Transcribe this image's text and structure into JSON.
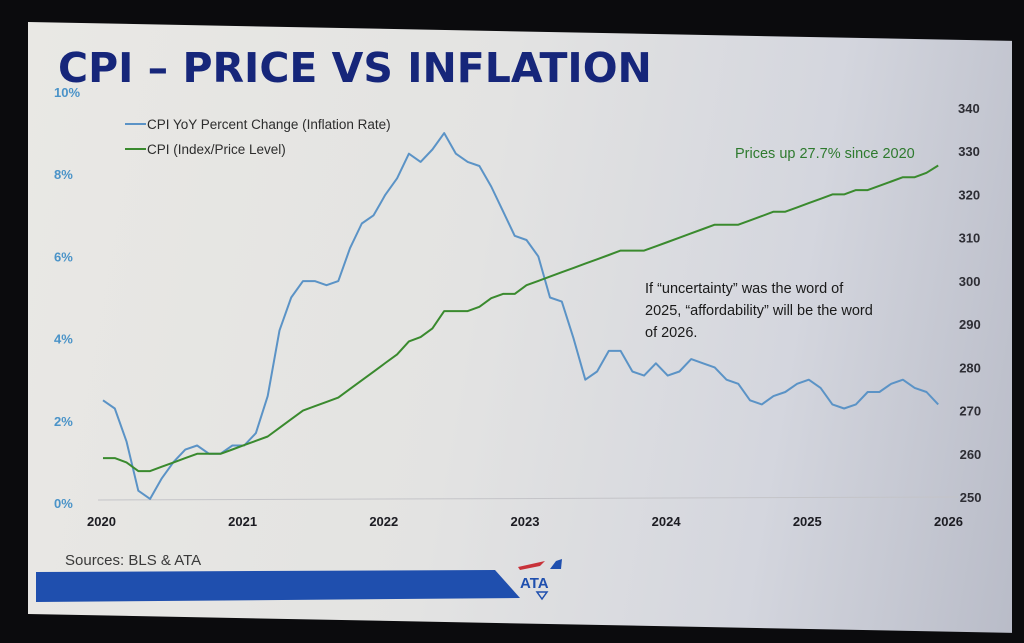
{
  "slide": {
    "title": "CPI – PRICE VS INFLATION",
    "sources": "Sources: BLS & ATA",
    "logo_text": "ATA",
    "brand_color": "#1f4fae",
    "title_color": "#16267a"
  },
  "chart_data": {
    "type": "line",
    "title": "CPI – PRICE VS INFLATION",
    "x_ticks": [
      "2020",
      "2021",
      "2022",
      "2023",
      "2024",
      "2025",
      "2026"
    ],
    "xlim": [
      2020,
      2026
    ],
    "y_left": {
      "ticks": [
        "0%",
        "2%",
        "4%",
        "6%",
        "8%",
        "10%"
      ],
      "range": [
        0,
        10
      ]
    },
    "y_right": {
      "ticks": [
        "250",
        "260",
        "270",
        "280",
        "290",
        "300",
        "310",
        "320",
        "330",
        "340"
      ],
      "range": [
        250,
        340
      ]
    },
    "legend_position": "top-left",
    "grid": false,
    "series": [
      {
        "name": "CPI YoY Percent Change (Inflation Rate)",
        "axis": "left",
        "color": "#5b93c6",
        "values": [
          2.5,
          2.3,
          1.5,
          0.3,
          0.1,
          0.6,
          1.0,
          1.3,
          1.4,
          1.2,
          1.2,
          1.4,
          1.4,
          1.7,
          2.6,
          4.2,
          5.0,
          5.4,
          5.4,
          5.3,
          5.4,
          6.2,
          6.8,
          7.0,
          7.5,
          7.9,
          8.5,
          8.3,
          8.6,
          9.0,
          8.5,
          8.3,
          8.2,
          7.7,
          7.1,
          6.5,
          6.4,
          6.0,
          5.0,
          4.9,
          4.0,
          3.0,
          3.2,
          3.7,
          3.7,
          3.2,
          3.1,
          3.4,
          3.1,
          3.2,
          3.5,
          3.4,
          3.3,
          3.0,
          2.9,
          2.5,
          2.4,
          2.6,
          2.7,
          2.9,
          3.0,
          2.8,
          2.4,
          2.3,
          2.4,
          2.7,
          2.7,
          2.9,
          3.0,
          2.8,
          2.7,
          2.4
        ]
      },
      {
        "name": "CPI (Index/Price Level)",
        "axis": "right",
        "color": "#3a8a2e",
        "values": [
          259,
          259,
          258,
          256,
          256,
          257,
          258,
          259,
          260,
          260,
          260,
          261,
          262,
          263,
          264,
          266,
          268,
          270,
          271,
          272,
          273,
          275,
          277,
          279,
          281,
          283,
          286,
          287,
          289,
          293,
          293,
          293,
          294,
          296,
          297,
          297,
          299,
          300,
          301,
          302,
          303,
          304,
          305,
          306,
          307,
          307,
          307,
          308,
          309,
          310,
          311,
          312,
          313,
          313,
          313,
          314,
          315,
          316,
          316,
          317,
          318,
          319,
          320,
          320,
          321,
          321,
          322,
          323,
          324,
          324,
          325,
          326.7
        ]
      }
    ],
    "annotations": [
      "Prices up 27.7% since 2020",
      "If “uncertainty” was the word of",
      "2025, “affordability” will be the word",
      "of 2026."
    ]
  }
}
